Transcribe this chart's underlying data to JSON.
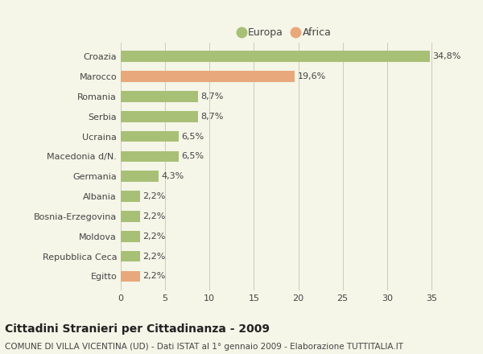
{
  "categories": [
    "Croazia",
    "Marocco",
    "Romania",
    "Serbia",
    "Ucraina",
    "Macedonia d/N.",
    "Germania",
    "Albania",
    "Bosnia-Erzegovina",
    "Moldova",
    "Repubblica Ceca",
    "Egitto"
  ],
  "values": [
    34.8,
    19.6,
    8.7,
    8.7,
    6.5,
    6.5,
    4.3,
    2.2,
    2.2,
    2.2,
    2.2,
    2.2
  ],
  "labels": [
    "34,8%",
    "19,6%",
    "8,7%",
    "8,7%",
    "6,5%",
    "6,5%",
    "4,3%",
    "2,2%",
    "2,2%",
    "2,2%",
    "2,2%",
    "2,2%"
  ],
  "continents": [
    "Europa",
    "Africa",
    "Europa",
    "Europa",
    "Europa",
    "Europa",
    "Europa",
    "Europa",
    "Europa",
    "Europa",
    "Europa",
    "Africa"
  ],
  "color_europa": "#a8c076",
  "color_africa": "#e8a87c",
  "background_color": "#f5f5e8",
  "title": "Cittadini Stranieri per Cittadinanza - 2009",
  "subtitle": "COMUNE DI VILLA VICENTINA (UD) - Dati ISTAT al 1° gennaio 2009 - Elaborazione TUTTITALIA.IT",
  "legend_europa": "Europa",
  "legend_africa": "Africa",
  "xlim": [
    0,
    37
  ],
  "xticks": [
    0,
    5,
    10,
    15,
    20,
    25,
    30,
    35
  ],
  "title_fontsize": 10,
  "subtitle_fontsize": 7.5,
  "label_fontsize": 8,
  "tick_fontsize": 8,
  "legend_fontsize": 9,
  "bar_height": 0.55
}
